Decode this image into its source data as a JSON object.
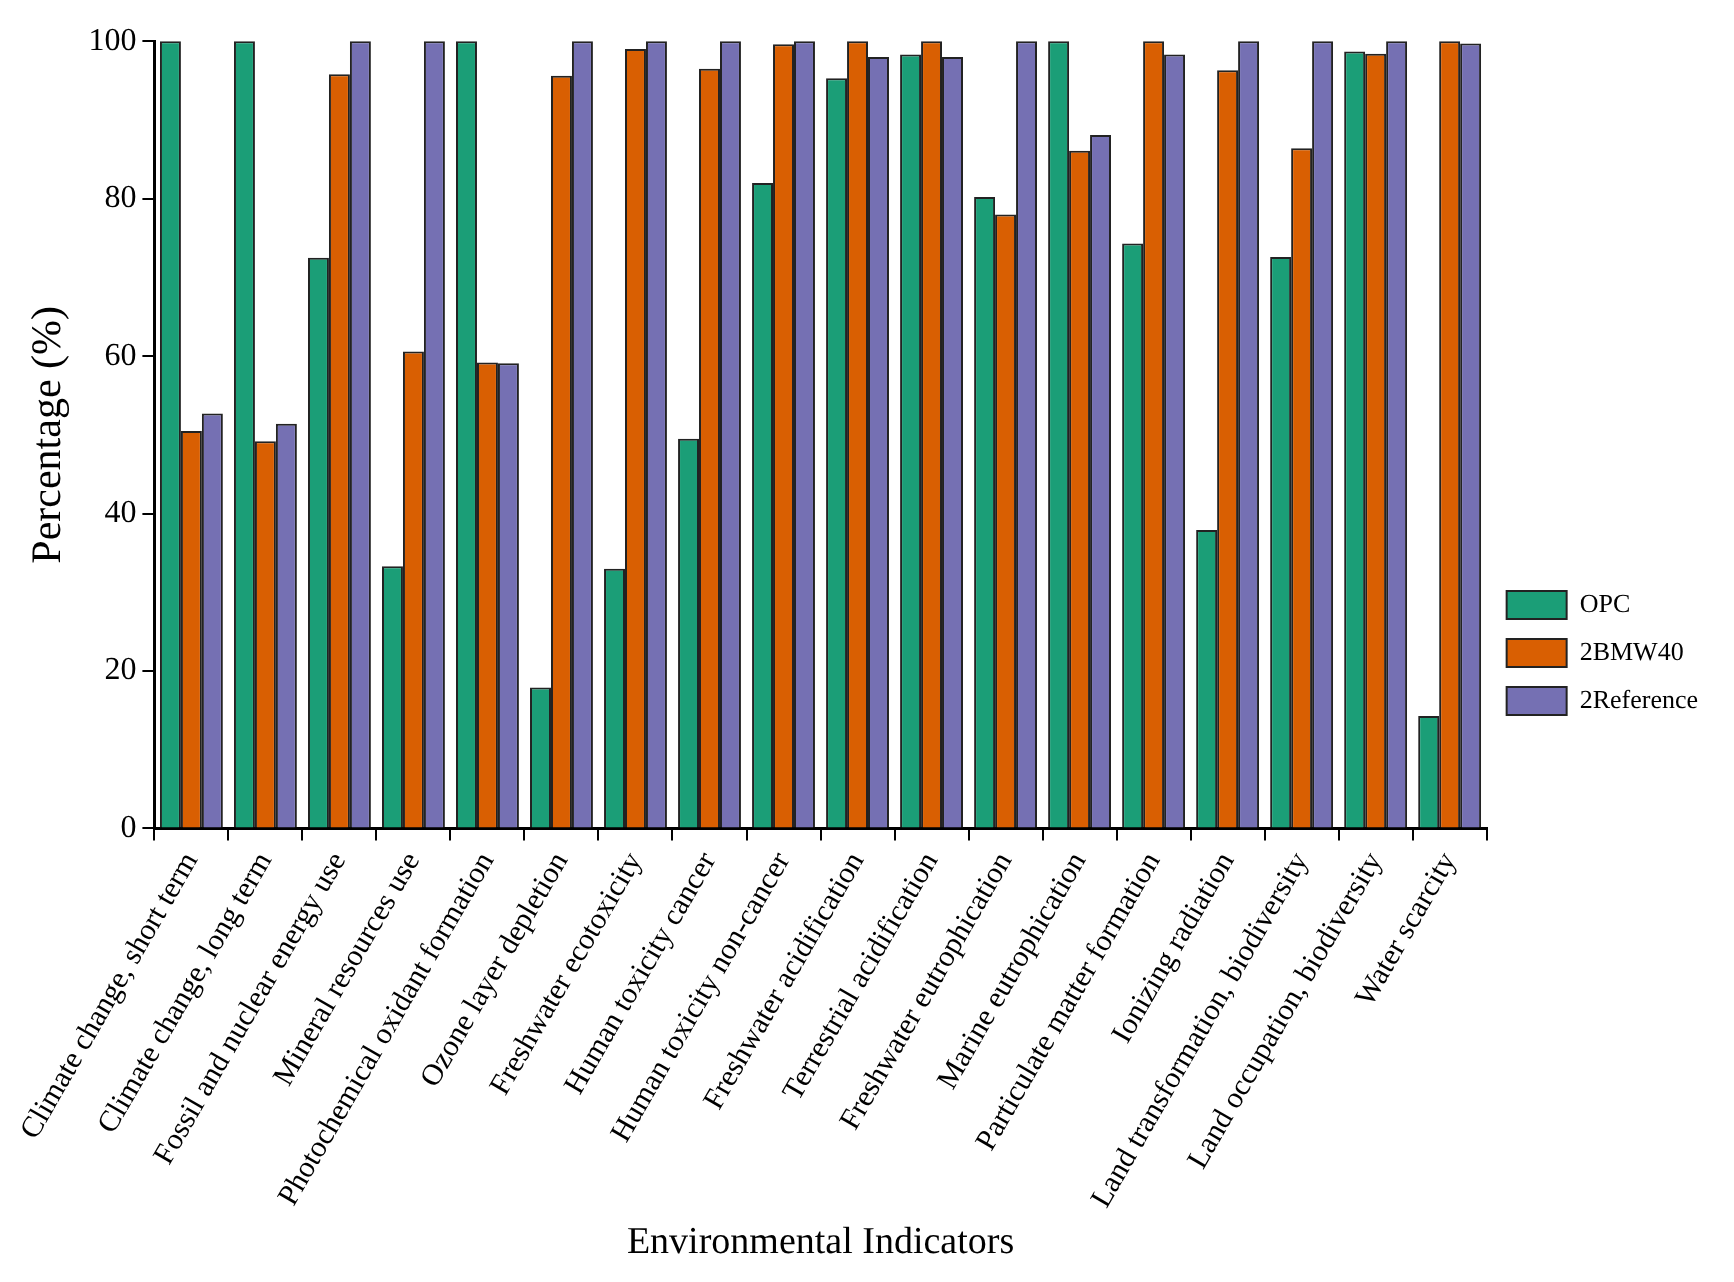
{
  "chart_data": {
    "type": "bar",
    "xlabel": "Environmental Indicators",
    "ylabel": "Percentage (%)",
    "categories": [
      "Climate change, short term",
      "Climate change, long term",
      "Fossil and nuclear energy use",
      "Mineral resources use",
      "Photochemical oxidant formation",
      "Ozone layer depletion",
      "Freshwater ecotoxicity",
      "Human toxicity cancer",
      "Human toxicity non-cancer",
      "Freshwater acidification",
      "Terrestrial acidification",
      "Freshwater eutrophication",
      "Marine eutrophication",
      "Particulate matter formation",
      "Ionizing radiation",
      "Land transformation, biodiversity",
      "Land occupation, biodiversity",
      "Water scarcity"
    ],
    "series": [
      {
        "name": "OPC",
        "color": "#1b9e77",
        "values": [
          100,
          100,
          72.5,
          33.3,
          100,
          17.9,
          33,
          49.5,
          82,
          95.3,
          98.3,
          80.2,
          100,
          74.3,
          37.9,
          72.6,
          98.7,
          14.3
        ]
      },
      {
        "name": "2BMW40",
        "color": "#d95f02",
        "values": [
          50.5,
          49.2,
          95.8,
          60.6,
          59.2,
          95.6,
          99,
          96.5,
          99.6,
          100,
          100,
          78,
          86.1,
          100,
          96.3,
          86.4,
          98.4,
          100
        ]
      },
      {
        "name": "2Reference",
        "color": "#7570b3",
        "values": [
          52.7,
          51.4,
          100,
          100,
          59.1,
          100,
          100,
          100,
          100,
          98,
          98,
          100,
          88.1,
          98.3,
          100,
          100,
          100,
          99.7
        ]
      }
    ],
    "ylim": [
      0,
      100
    ],
    "yticks": [
      0,
      20,
      40,
      60,
      80,
      100
    ],
    "grid": false,
    "legend": "right"
  }
}
